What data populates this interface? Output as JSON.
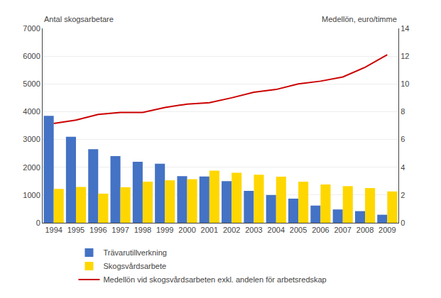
{
  "chart_data": {
    "type": "bar",
    "categories": [
      "1994",
      "1995",
      "1996",
      "1997",
      "1998",
      "1999",
      "2000",
      "2001",
      "2002",
      "2003",
      "2004",
      "2005",
      "2006",
      "2007",
      "2008",
      "2009"
    ],
    "series": [
      {
        "name": "Trävarutillverkning",
        "color": "#4472C4",
        "values": [
          3850,
          3100,
          2650,
          2400,
          2200,
          2130,
          1680,
          1670,
          1500,
          1150,
          1000,
          870,
          620,
          480,
          420,
          290
        ]
      },
      {
        "name": "Skogsvårdsarbete",
        "color": "#FFD700",
        "values": [
          1220,
          1290,
          1050,
          1280,
          1480,
          1530,
          1570,
          1880,
          1800,
          1730,
          1660,
          1480,
          1380,
          1320,
          1250,
          1130
        ]
      },
      {
        "name": "Medellön vid skogsvårdsarbeten exkl. andelen för arbetsredskap",
        "color": "#CC0000",
        "type": "line",
        "axis": "y2",
        "values": [
          7.15,
          7.4,
          7.8,
          7.95,
          7.95,
          8.3,
          8.55,
          8.65,
          9.0,
          9.4,
          9.6,
          10.0,
          10.2,
          10.5,
          11.2,
          12.1
        ]
      }
    ],
    "ylabel": "Antal skogsarbetare",
    "y2label": "Medellön, euro/timme",
    "ylim": [
      0,
      7000
    ],
    "yticks": [
      0,
      1000,
      2000,
      3000,
      4000,
      5000,
      6000,
      7000
    ],
    "y2lim": [
      0,
      14
    ],
    "y2ticks": [
      0,
      2,
      4,
      6,
      8,
      10,
      12,
      14
    ],
    "grid": true,
    "legend": "bottom"
  }
}
